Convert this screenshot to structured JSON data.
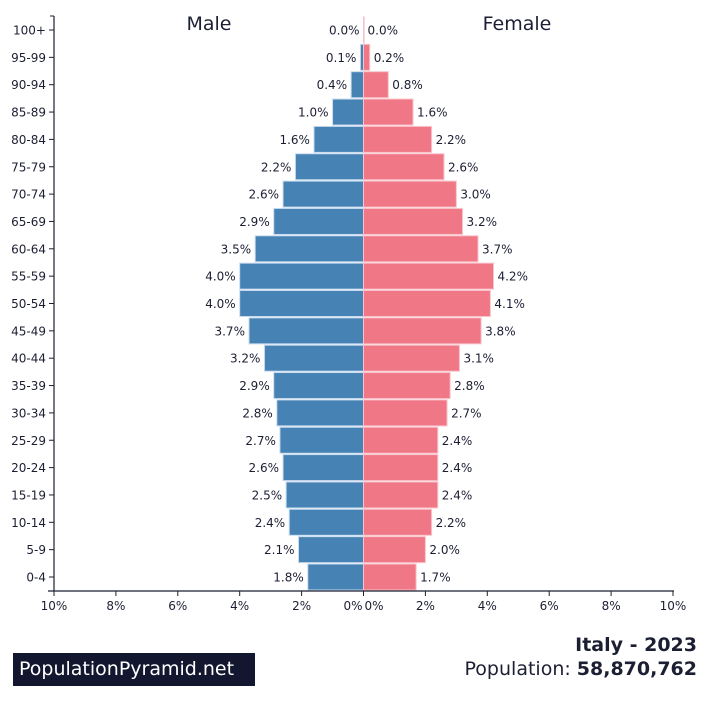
{
  "chart_data": {
    "type": "bar",
    "orientation": "horizontal-pyramid",
    "categories": [
      "100+",
      "95-99",
      "90-94",
      "85-89",
      "80-84",
      "75-79",
      "70-74",
      "65-69",
      "60-64",
      "55-59",
      "50-54",
      "45-49",
      "40-44",
      "35-39",
      "30-34",
      "25-29",
      "20-24",
      "15-19",
      "10-14",
      "5-9",
      "0-4"
    ],
    "series": [
      {
        "name": "Male",
        "color": "#4682b4",
        "values": [
          0.0,
          0.1,
          0.4,
          1.0,
          1.6,
          2.2,
          2.6,
          2.9,
          3.5,
          4.0,
          4.0,
          3.7,
          3.2,
          2.9,
          2.8,
          2.7,
          2.6,
          2.5,
          2.4,
          2.1,
          1.8
        ]
      },
      {
        "name": "Female",
        "color": "#f07886",
        "values": [
          0.0,
          0.2,
          0.8,
          1.6,
          2.2,
          2.6,
          3.0,
          3.2,
          3.7,
          4.2,
          4.1,
          3.8,
          3.1,
          2.8,
          2.7,
          2.4,
          2.4,
          2.4,
          2.2,
          2.0,
          1.7
        ]
      }
    ],
    "xlim": [
      -10,
      10
    ],
    "xticks": [
      "10%",
      "8%",
      "6%",
      "4%",
      "2%",
      "0%",
      "0%",
      "2%",
      "4%",
      "6%",
      "8%",
      "10%"
    ],
    "xtick_values": [
      -10,
      -8,
      -6,
      -4,
      -2,
      0,
      0,
      2,
      4,
      6,
      8,
      10
    ],
    "unit": "%",
    "grid": false
  },
  "footer": {
    "brand": "PopulationPyramid.net",
    "title": "Italy - 2023",
    "population_label": "Population: ",
    "population_value": "58,870,762"
  }
}
